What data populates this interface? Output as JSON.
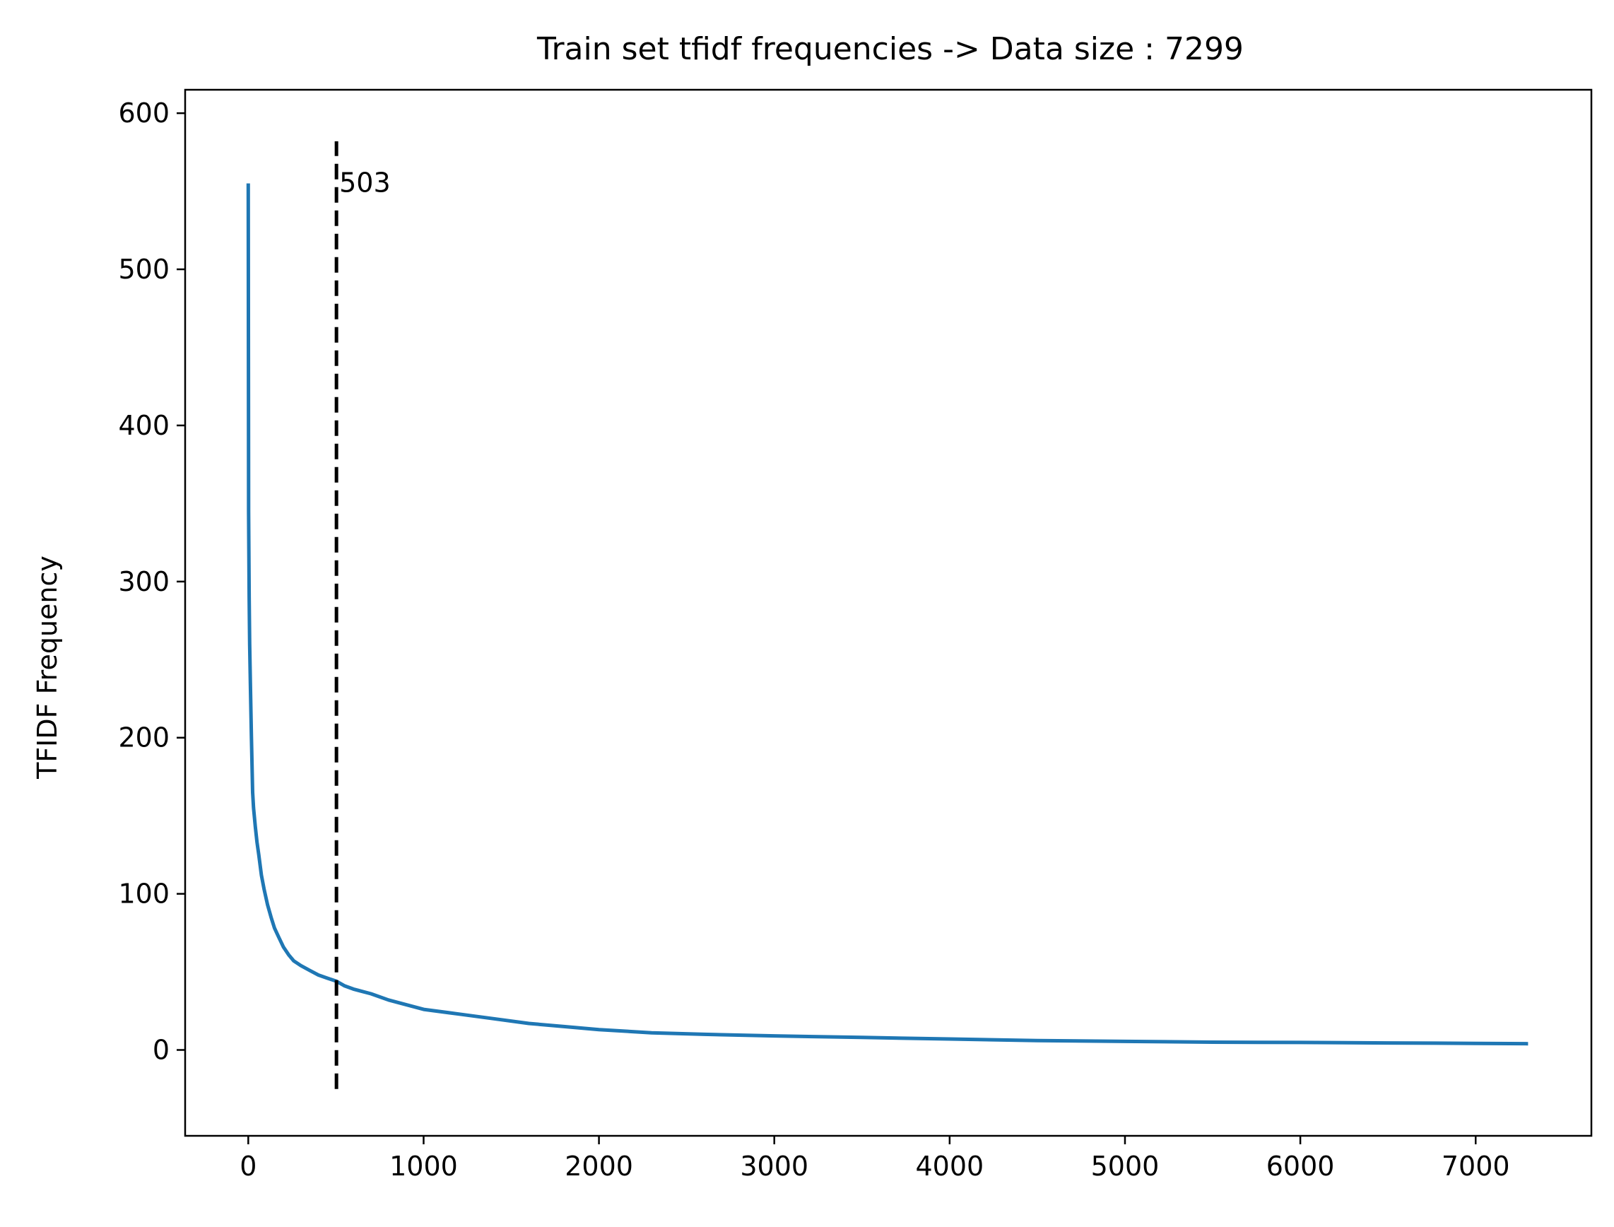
{
  "chart_data": {
    "type": "line",
    "title": "Train set tfidf frequencies -> Data size : 7299",
    "xlabel": "",
    "ylabel": "TFIDF Frequency",
    "xlim": [
      -360,
      7660
    ],
    "ylim": [
      -55,
      615
    ],
    "xticks": [
      0,
      1000,
      2000,
      3000,
      4000,
      5000,
      6000,
      7000
    ],
    "yticks": [
      0,
      100,
      200,
      300,
      400,
      500,
      600
    ],
    "grid": false,
    "series": [
      {
        "color": "#1f77b4",
        "x": [
          0,
          2,
          5,
          8,
          12,
          18,
          25,
          30,
          40,
          50,
          60,
          75,
          90,
          110,
          130,
          150,
          175,
          200,
          230,
          260,
          300,
          350,
          400,
          450,
          503,
          550,
          600,
          700,
          800,
          900,
          1000,
          1200,
          1400,
          1600,
          1800,
          2000,
          2300,
          2600,
          3000,
          3500,
          4000,
          4500,
          5000,
          5500,
          6000,
          6500,
          7000,
          7299
        ],
        "y": [
          555,
          345,
          290,
          260,
          235,
          200,
          165,
          155,
          143,
          133,
          125,
          112,
          103,
          93,
          85,
          78,
          72,
          66,
          61,
          57,
          54,
          51,
          48,
          46,
          44,
          41,
          39,
          36,
          32,
          29,
          26,
          23,
          20,
          17,
          15,
          13,
          11,
          10,
          9,
          8,
          7,
          6,
          5.5,
          5,
          4.8,
          4.5,
          4.2,
          4
        ]
      }
    ],
    "vline": {
      "x": 503,
      "y": [
        -25,
        582
      ],
      "style": "dashed",
      "color": "#000000"
    },
    "annotations": [
      {
        "text": "503",
        "x": 503,
        "y": 556
      }
    ]
  }
}
